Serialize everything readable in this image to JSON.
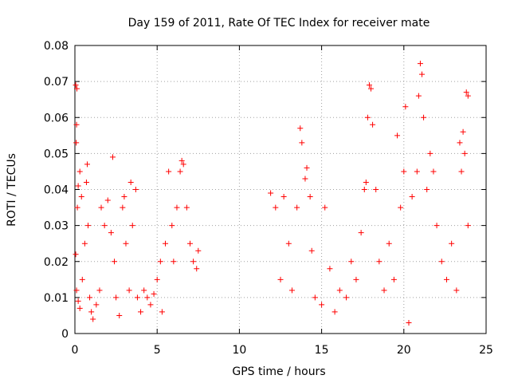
{
  "chart_data": {
    "type": "scatter",
    "title": "Day 159 of 2011, Rate Of TEC Index for receiver mate",
    "xlabel": "GPS time / hours",
    "ylabel": "ROTI / TECUs",
    "xlim": [
      0,
      25
    ],
    "ylim": [
      0,
      0.08
    ],
    "x_ticks": [
      0,
      5,
      10,
      15,
      20,
      25
    ],
    "y_ticks": [
      0,
      0.01,
      0.02,
      0.03,
      0.04,
      0.05,
      0.06,
      0.07,
      0.08
    ],
    "x_tick_labels": [
      "0",
      "5",
      "10",
      "15",
      "20",
      "25"
    ],
    "y_tick_labels": [
      "0",
      "0.01",
      "0.02",
      "0.03",
      "0.04",
      "0.05",
      "0.06",
      "0.07",
      "0.08"
    ],
    "grid": true,
    "marker": "plus",
    "color": "#ff0000",
    "series": [
      {
        "points": [
          [
            0.05,
            0.069
          ],
          [
            0.12,
            0.068
          ],
          [
            0.1,
            0.058
          ],
          [
            0.08,
            0.053
          ],
          [
            0.3,
            0.045
          ],
          [
            0.2,
            0.041
          ],
          [
            0.4,
            0.038
          ],
          [
            0.15,
            0.035
          ],
          [
            0.05,
            0.022
          ],
          [
            0.1,
            0.012
          ],
          [
            0.2,
            0.009
          ],
          [
            0.3,
            0.007
          ],
          [
            0.45,
            0.015
          ],
          [
            0.6,
            0.025
          ],
          [
            0.7,
            0.042
          ],
          [
            0.75,
            0.047
          ],
          [
            0.8,
            0.03
          ],
          [
            0.9,
            0.01
          ],
          [
            1.0,
            0.006
          ],
          [
            1.1,
            0.004
          ],
          [
            1.3,
            0.008
          ],
          [
            1.5,
            0.012
          ],
          [
            1.6,
            0.035
          ],
          [
            1.8,
            0.03
          ],
          [
            2.0,
            0.037
          ],
          [
            2.2,
            0.028
          ],
          [
            2.3,
            0.049
          ],
          [
            2.4,
            0.02
          ],
          [
            2.5,
            0.01
          ],
          [
            2.7,
            0.005
          ],
          [
            2.9,
            0.035
          ],
          [
            3.0,
            0.038
          ],
          [
            3.1,
            0.025
          ],
          [
            3.3,
            0.012
          ],
          [
            3.4,
            0.042
          ],
          [
            3.5,
            0.03
          ],
          [
            3.7,
            0.04
          ],
          [
            3.8,
            0.01
          ],
          [
            4.0,
            0.006
          ],
          [
            4.2,
            0.012
          ],
          [
            4.4,
            0.01
          ],
          [
            4.6,
            0.008
          ],
          [
            4.8,
            0.011
          ],
          [
            5.0,
            0.015
          ],
          [
            5.2,
            0.02
          ],
          [
            5.3,
            0.006
          ],
          [
            5.5,
            0.025
          ],
          [
            5.7,
            0.045
          ],
          [
            5.9,
            0.03
          ],
          [
            6.0,
            0.02
          ],
          [
            6.2,
            0.035
          ],
          [
            6.4,
            0.045
          ],
          [
            6.5,
            0.048
          ],
          [
            6.6,
            0.047
          ],
          [
            6.8,
            0.035
          ],
          [
            7.0,
            0.025
          ],
          [
            7.2,
            0.02
          ],
          [
            7.4,
            0.018
          ],
          [
            7.5,
            0.023
          ],
          [
            11.9,
            0.039
          ],
          [
            12.2,
            0.035
          ],
          [
            12.5,
            0.015
          ],
          [
            12.7,
            0.038
          ],
          [
            13.0,
            0.025
          ],
          [
            13.2,
            0.012
          ],
          [
            13.5,
            0.035
          ],
          [
            13.7,
            0.057
          ],
          [
            13.8,
            0.053
          ],
          [
            14.0,
            0.043
          ],
          [
            14.1,
            0.046
          ],
          [
            14.3,
            0.038
          ],
          [
            14.4,
            0.023
          ],
          [
            14.6,
            0.01
          ],
          [
            15.0,
            0.008
          ],
          [
            15.2,
            0.035
          ],
          [
            15.5,
            0.018
          ],
          [
            15.8,
            0.006
          ],
          [
            16.1,
            0.012
          ],
          [
            16.5,
            0.01
          ],
          [
            16.8,
            0.02
          ],
          [
            17.1,
            0.015
          ],
          [
            17.4,
            0.028
          ],
          [
            17.6,
            0.04
          ],
          [
            17.7,
            0.042
          ],
          [
            17.8,
            0.06
          ],
          [
            17.9,
            0.069
          ],
          [
            18.0,
            0.068
          ],
          [
            18.1,
            0.058
          ],
          [
            18.3,
            0.04
          ],
          [
            18.5,
            0.02
          ],
          [
            18.8,
            0.012
          ],
          [
            19.1,
            0.025
          ],
          [
            19.4,
            0.015
          ],
          [
            19.6,
            0.055
          ],
          [
            19.8,
            0.035
          ],
          [
            20.0,
            0.045
          ],
          [
            20.1,
            0.063
          ],
          [
            20.3,
            0.003
          ],
          [
            20.5,
            0.038
          ],
          [
            20.8,
            0.045
          ],
          [
            20.9,
            0.066
          ],
          [
            21.0,
            0.075
          ],
          [
            21.1,
            0.072
          ],
          [
            21.2,
            0.06
          ],
          [
            21.4,
            0.04
          ],
          [
            21.6,
            0.05
          ],
          [
            21.8,
            0.045
          ],
          [
            22.0,
            0.03
          ],
          [
            22.3,
            0.02
          ],
          [
            22.6,
            0.015
          ],
          [
            22.9,
            0.025
          ],
          [
            23.2,
            0.012
          ],
          [
            23.4,
            0.053
          ],
          [
            23.5,
            0.045
          ],
          [
            23.6,
            0.056
          ],
          [
            23.7,
            0.05
          ],
          [
            23.8,
            0.067
          ],
          [
            23.9,
            0.066
          ],
          [
            23.9,
            0.03
          ]
        ]
      }
    ]
  }
}
